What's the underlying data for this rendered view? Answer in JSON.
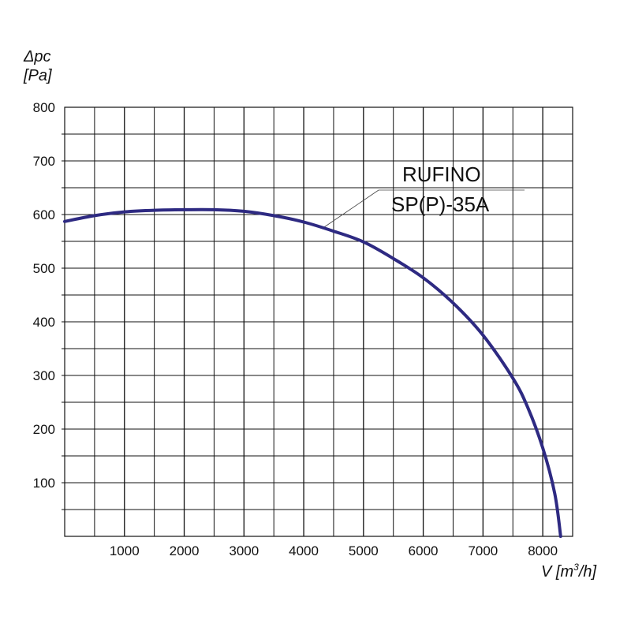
{
  "chart_data": {
    "type": "line",
    "ylabel_symbol": "Δpc",
    "ylabel_unit": "[Pa]",
    "xlabel_prefix": "V [m",
    "xlabel_sup": "3",
    "xlabel_suffix": "/h]",
    "xlim": [
      0,
      8500
    ],
    "ylim": [
      0,
      800
    ],
    "grid": true,
    "x_ticks": [
      1000,
      2000,
      3000,
      4000,
      5000,
      6000,
      7000,
      8000
    ],
    "y_ticks": [
      100,
      200,
      300,
      400,
      500,
      600,
      700,
      800
    ],
    "series": [
      {
        "name_line1": "RUFINO",
        "name_line2": "SP(P)-35A",
        "color": "#2e2a82",
        "x": [
          0,
          500,
          1000,
          1500,
          2000,
          2500,
          3000,
          3500,
          4000,
          4500,
          5000,
          5500,
          6000,
          6500,
          7000,
          7500,
          7750,
          8000,
          8200,
          8300
        ],
        "y": [
          587,
          598,
          605,
          608,
          609,
          609,
          606,
          598,
          586,
          569,
          549,
          518,
          482,
          435,
          375,
          295,
          240,
          165,
          80,
          0
        ]
      }
    ]
  }
}
